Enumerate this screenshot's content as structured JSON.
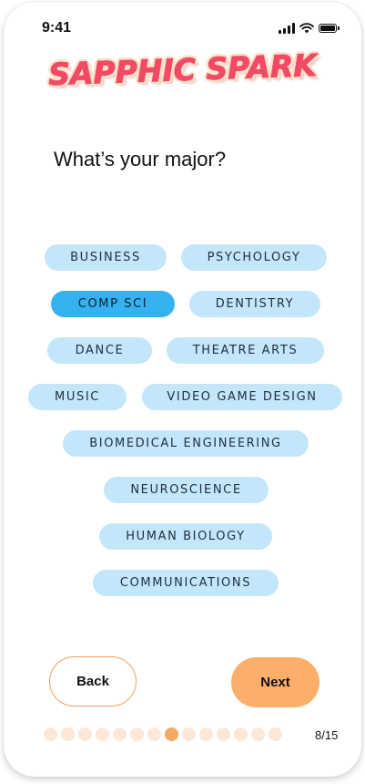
{
  "status_bar": {
    "time": "9:41",
    "icons": [
      "signal-icon",
      "wifi-icon",
      "battery-icon"
    ]
  },
  "app": {
    "logo_text": "SAPPHIC SPARK",
    "logo_color": "#f04a66"
  },
  "question": "What’s your major?",
  "majors": [
    {
      "label": "BUSINESS",
      "selected": false
    },
    {
      "label": "PSYCHOLOGY",
      "selected": false
    },
    {
      "label": "COMP SCI",
      "selected": true
    },
    {
      "label": "DENTISTRY",
      "selected": false
    },
    {
      "label": "DANCE",
      "selected": false
    },
    {
      "label": "THEATRE ARTS",
      "selected": false
    },
    {
      "label": "MUSIC",
      "selected": false
    },
    {
      "label": "VIDEO GAME DESIGN",
      "selected": false
    },
    {
      "label": "BIOMEDICAL ENGINEERING",
      "selected": false
    },
    {
      "label": "NEUROSCIENCE",
      "selected": false
    },
    {
      "label": "HUMAN BIOLOGY",
      "selected": false
    },
    {
      "label": "COMMUNICATIONS",
      "selected": false
    }
  ],
  "colors": {
    "chip": "#c4e6fb",
    "chip_selected": "#36b1ef",
    "next_button": "#fcae6b",
    "back_border": "#f0a060",
    "dot": "#fde7d6",
    "dot_active": "#f5a865"
  },
  "nav": {
    "back_label": "Back",
    "next_label": "Next"
  },
  "progress": {
    "current": 8,
    "total": 15,
    "label": "8/15"
  }
}
